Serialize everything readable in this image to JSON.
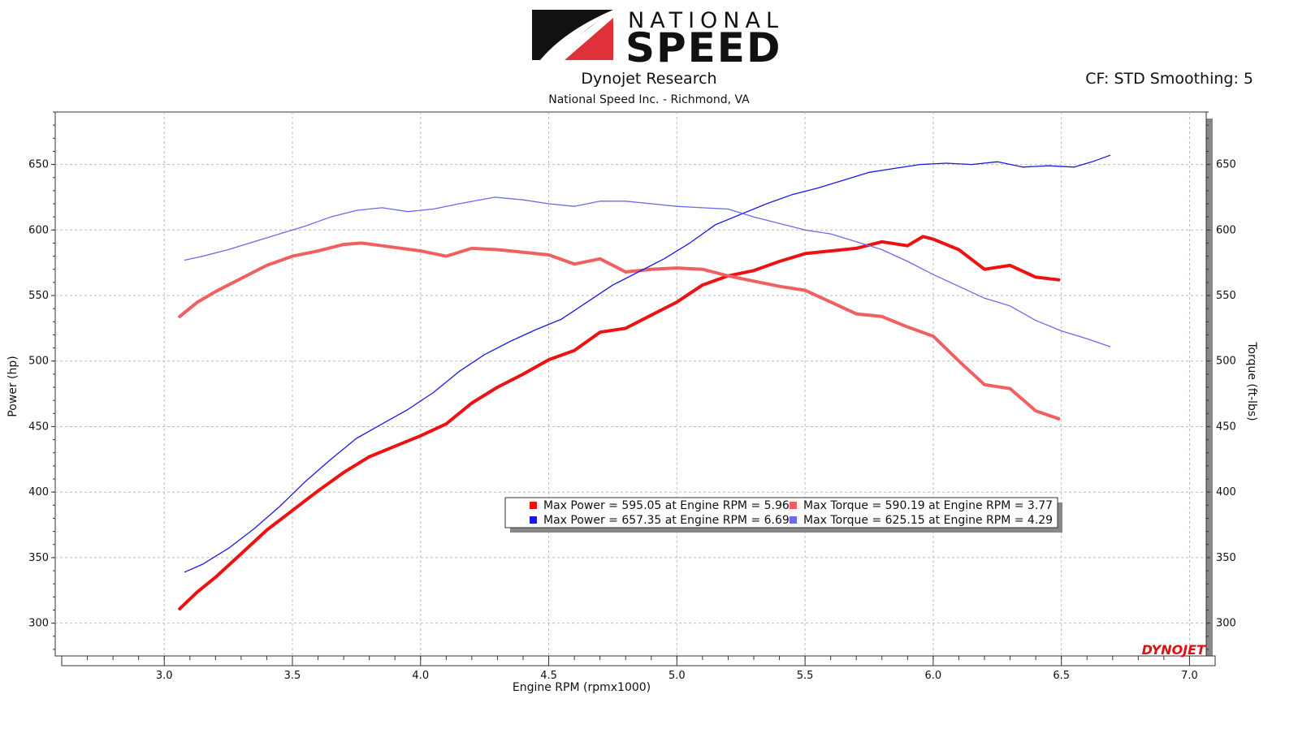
{
  "header": {
    "logo_small": "NATIONAL",
    "logo_large": "SPEED",
    "title": "Dynojet Research",
    "subtitle": "National Speed Inc. - Richmond, VA",
    "correction": "CF: STD Smoothing: 5"
  },
  "footer_brand": "DYNOJET",
  "colors": {
    "red": "#ee1111",
    "light_red": "#f06060",
    "blue": "#1a1ae6",
    "light_blue": "#6a6aee",
    "grid": "#bbbbbb"
  },
  "chart_data": {
    "type": "line",
    "xlabel": "Engine RPM (rpmx1000)",
    "ylabel_left": "Power (hp)",
    "ylabel_right": "Torque (ft-lbs)",
    "xlim": [
      2.6,
      7.1
    ],
    "ylim": [
      275,
      690
    ],
    "x_ticks": [
      "3.0",
      "3.5",
      "4.0",
      "4.5",
      "5.0",
      "5.5",
      "6.0",
      "6.5",
      "7.0"
    ],
    "y_ticks": [
      "300",
      "350",
      "400",
      "450",
      "500",
      "550",
      "600",
      "650"
    ],
    "grid": true,
    "legend_position": "bottom-center",
    "legend": [
      "Max Power = 595.05 at Engine RPM = 5.96",
      "Max Torque = 590.19 at Engine RPM = 3.77",
      "Max Power = 657.35 at Engine RPM = 6.69",
      "Max Torque = 625.15 at Engine RPM = 4.29"
    ],
    "series": [
      {
        "axis": "left",
        "color": "#ee1111",
        "width": 4,
        "x": [
          3.06,
          3.13,
          3.2,
          3.3,
          3.4,
          3.5,
          3.6,
          3.7,
          3.8,
          3.9,
          4.0,
          4.1,
          4.2,
          4.3,
          4.4,
          4.5,
          4.6,
          4.7,
          4.8,
          4.9,
          5.0,
          5.1,
          5.2,
          5.3,
          5.4,
          5.5,
          5.6,
          5.7,
          5.8,
          5.9,
          5.96,
          6.0,
          6.1,
          6.2,
          6.3,
          6.4,
          6.49
        ],
        "y": [
          311,
          324,
          335,
          353,
          371,
          386,
          401,
          415,
          427,
          435,
          443,
          452,
          468,
          480,
          490,
          501,
          508,
          522,
          525,
          535,
          545,
          558,
          565,
          569,
          576,
          582,
          584,
          586,
          591,
          588,
          595,
          593,
          585,
          570,
          573,
          564,
          562
        ]
      },
      {
        "axis": "left",
        "color": "#f06060",
        "width": 4,
        "x": [
          3.06,
          3.13,
          3.2,
          3.3,
          3.4,
          3.5,
          3.6,
          3.7,
          3.77,
          3.85,
          4.0,
          4.1,
          4.2,
          4.3,
          4.4,
          4.5,
          4.6,
          4.7,
          4.8,
          4.9,
          5.0,
          5.1,
          5.2,
          5.3,
          5.4,
          5.5,
          5.6,
          5.7,
          5.8,
          5.9,
          6.0,
          6.1,
          6.2,
          6.3,
          6.4,
          6.49
        ],
        "y": [
          534,
          545,
          553,
          563,
          573,
          580,
          584,
          589,
          590,
          588,
          584,
          580,
          586,
          585,
          583,
          581,
          574,
          578,
          568,
          570,
          571,
          570,
          565,
          561,
          557,
          554,
          545,
          536,
          534,
          526,
          519,
          500,
          482,
          479,
          462,
          456
        ]
      },
      {
        "axis": "left",
        "color": "#1a1ae6",
        "width": 1.3,
        "x": [
          3.08,
          3.15,
          3.25,
          3.35,
          3.45,
          3.55,
          3.65,
          3.75,
          3.85,
          3.95,
          4.05,
          4.15,
          4.25,
          4.35,
          4.45,
          4.55,
          4.65,
          4.75,
          4.85,
          4.95,
          5.05,
          5.15,
          5.25,
          5.35,
          5.45,
          5.55,
          5.65,
          5.75,
          5.85,
          5.95,
          6.05,
          6.15,
          6.25,
          6.35,
          6.45,
          6.55,
          6.62,
          6.69
        ],
        "y": [
          339,
          345,
          357,
          372,
          389,
          408,
          425,
          441,
          452,
          463,
          476,
          492,
          505,
          515,
          524,
          532,
          545,
          558,
          568,
          578,
          590,
          604,
          612,
          620,
          627,
          632,
          638,
          644,
          647,
          650,
          651,
          650,
          652,
          648,
          649,
          648,
          652,
          657
        ]
      },
      {
        "axis": "left",
        "color": "#6a6aee",
        "width": 1.3,
        "x": [
          3.08,
          3.15,
          3.25,
          3.35,
          3.45,
          3.55,
          3.65,
          3.75,
          3.85,
          3.95,
          4.05,
          4.15,
          4.29,
          4.4,
          4.5,
          4.6,
          4.7,
          4.8,
          4.9,
          5.0,
          5.1,
          5.2,
          5.3,
          5.4,
          5.5,
          5.6,
          5.7,
          5.8,
          5.9,
          6.0,
          6.1,
          6.2,
          6.3,
          6.4,
          6.5,
          6.6,
          6.69
        ],
        "y": [
          577,
          580,
          585,
          591,
          597,
          603,
          610,
          615,
          617,
          614,
          616,
          620,
          625,
          623,
          620,
          618,
          622,
          622,
          620,
          618,
          617,
          616,
          610,
          605,
          600,
          597,
          591,
          585,
          576,
          566,
          557,
          548,
          542,
          531,
          523,
          517,
          511
        ]
      }
    ]
  }
}
